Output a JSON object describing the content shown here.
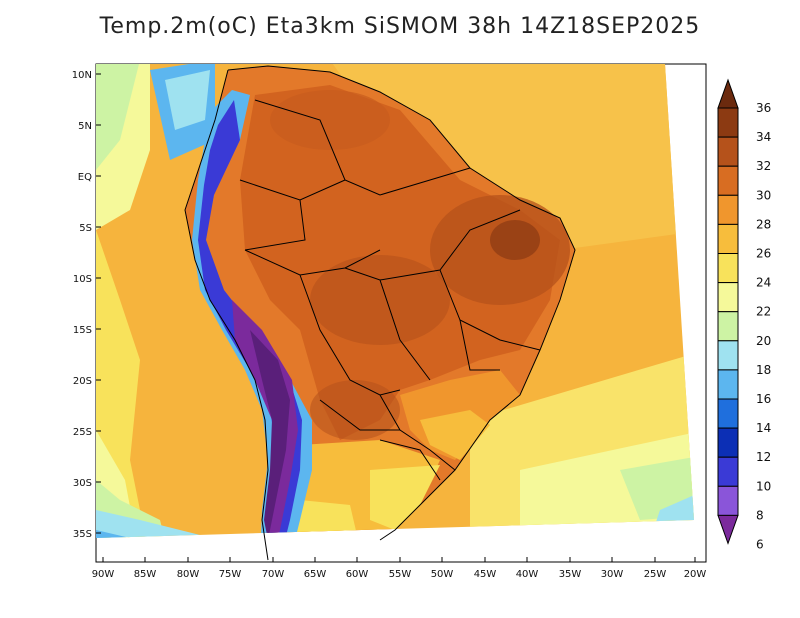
{
  "title": "Temp.2m(oC) Eta3km SiSMOM 38h 14Z18SEP2025",
  "lat_labels": [
    "10N",
    "5N",
    "EQ",
    "5S",
    "10S",
    "15S",
    "20S",
    "25S",
    "30S",
    "35S"
  ],
  "lon_labels": [
    "90W",
    "85W",
    "80W",
    "75W",
    "70W",
    "65W",
    "60W",
    "55W",
    "50W",
    "45W",
    "40W",
    "35W",
    "30W",
    "25W",
    "20W"
  ],
  "colorbar": {
    "labels": [
      "36",
      "34",
      "32",
      "30",
      "28",
      "26",
      "24",
      "22",
      "20",
      "18",
      "16",
      "14",
      "12",
      "10",
      "8",
      "6"
    ],
    "colors": [
      "#6b2a0e",
      "#8c3a12",
      "#b5521b",
      "#d86d22",
      "#f0962d",
      "#f7bd3c",
      "#f8e25b",
      "#f5f99a",
      "#cdf3a4",
      "#9fe2f0",
      "#5cb6ef",
      "#1f6fdd",
      "#0c2fb5",
      "#3a3ad6",
      "#8a55d9",
      "#7b2a9c"
    ]
  }
}
